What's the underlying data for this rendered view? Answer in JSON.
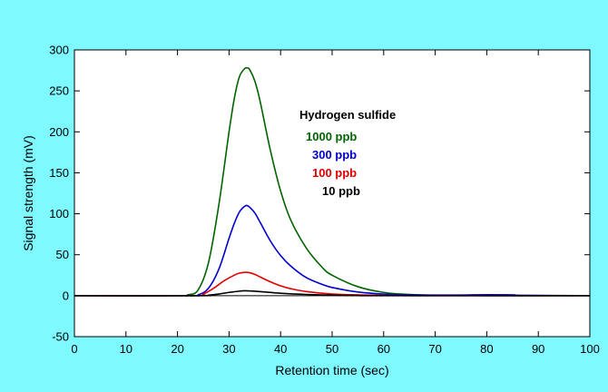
{
  "colors": {
    "background": "#7DF9FF",
    "plot_background": "#FFFFFF"
  },
  "chart_data": {
    "type": "line",
    "title": "",
    "xlabel": "Retention time (sec)",
    "ylabel": "Signal strength (mV)",
    "xlim": [
      0,
      100
    ],
    "ylim": [
      -50,
      300
    ],
    "x_ticks": [
      0,
      10,
      20,
      30,
      40,
      50,
      60,
      70,
      80,
      90,
      100
    ],
    "y_ticks": [
      -50,
      0,
      50,
      100,
      150,
      200,
      250,
      300
    ],
    "x_tick_labels": [
      "0",
      "10",
      "20",
      "30",
      "40",
      "50",
      "60",
      "70",
      "80",
      "90",
      "100"
    ],
    "y_tick_labels": [
      "-50",
      "0",
      "50",
      "100",
      "150",
      "200",
      "250",
      "300"
    ],
    "grid": false,
    "legend_heading": "Hydrogen sulfide",
    "legend_placement": "top-right inside plot",
    "series": [
      {
        "name": "1000 ppb",
        "color": "#006400",
        "x": [
          0,
          20,
          22,
          24,
          26,
          28,
          30,
          31,
          32,
          33,
          33.5,
          34,
          35,
          36,
          38,
          40,
          42,
          45,
          48,
          50,
          55,
          60,
          65,
          70,
          80,
          100
        ],
        "y": [
          0,
          0,
          1,
          7,
          40,
          110,
          200,
          240,
          267,
          277,
          278,
          276,
          262,
          238,
          178,
          128,
          92,
          58,
          35,
          25,
          11,
          4,
          1.5,
          0.5,
          0,
          0
        ]
      },
      {
        "name": "300 ppb",
        "color": "#0000CD",
        "x": [
          0,
          22,
          24,
          26,
          28,
          30,
          31,
          32,
          33,
          33.5,
          34,
          35,
          36,
          38,
          40,
          42,
          45,
          48,
          50,
          55,
          60,
          65,
          70,
          75,
          80,
          85,
          87,
          100
        ],
        "y": [
          0,
          0,
          1,
          9,
          32,
          70,
          88,
          102,
          109,
          110,
          108,
          101,
          90,
          67,
          49,
          36,
          22,
          14,
          10,
          4.5,
          2,
          1,
          0.7,
          0.8,
          1.2,
          1,
          0.5,
          0
        ]
      },
      {
        "name": "100 ppb",
        "color": "#E00000",
        "x": [
          0,
          23,
          25,
          27,
          29,
          31,
          32,
          33,
          33.5,
          34,
          35,
          36,
          38,
          40,
          42,
          45,
          50,
          55,
          60,
          70,
          100
        ],
        "y": [
          0,
          0,
          2,
          9,
          18,
          25,
          27.5,
          28.5,
          28.5,
          28,
          26,
          23,
          17,
          12,
          8.5,
          5,
          2,
          1,
          0.4,
          0,
          0
        ]
      },
      {
        "name": "10 ppb",
        "color": "#000000",
        "x": [
          0,
          24,
          26,
          28,
          30,
          32,
          33,
          34,
          35,
          37,
          40,
          45,
          50,
          55,
          60,
          100
        ],
        "y": [
          0,
          0,
          0.6,
          2,
          4,
          5.5,
          6,
          5.8,
          5.5,
          4.5,
          3,
          1.5,
          0.6,
          0.2,
          0,
          0
        ]
      }
    ]
  }
}
